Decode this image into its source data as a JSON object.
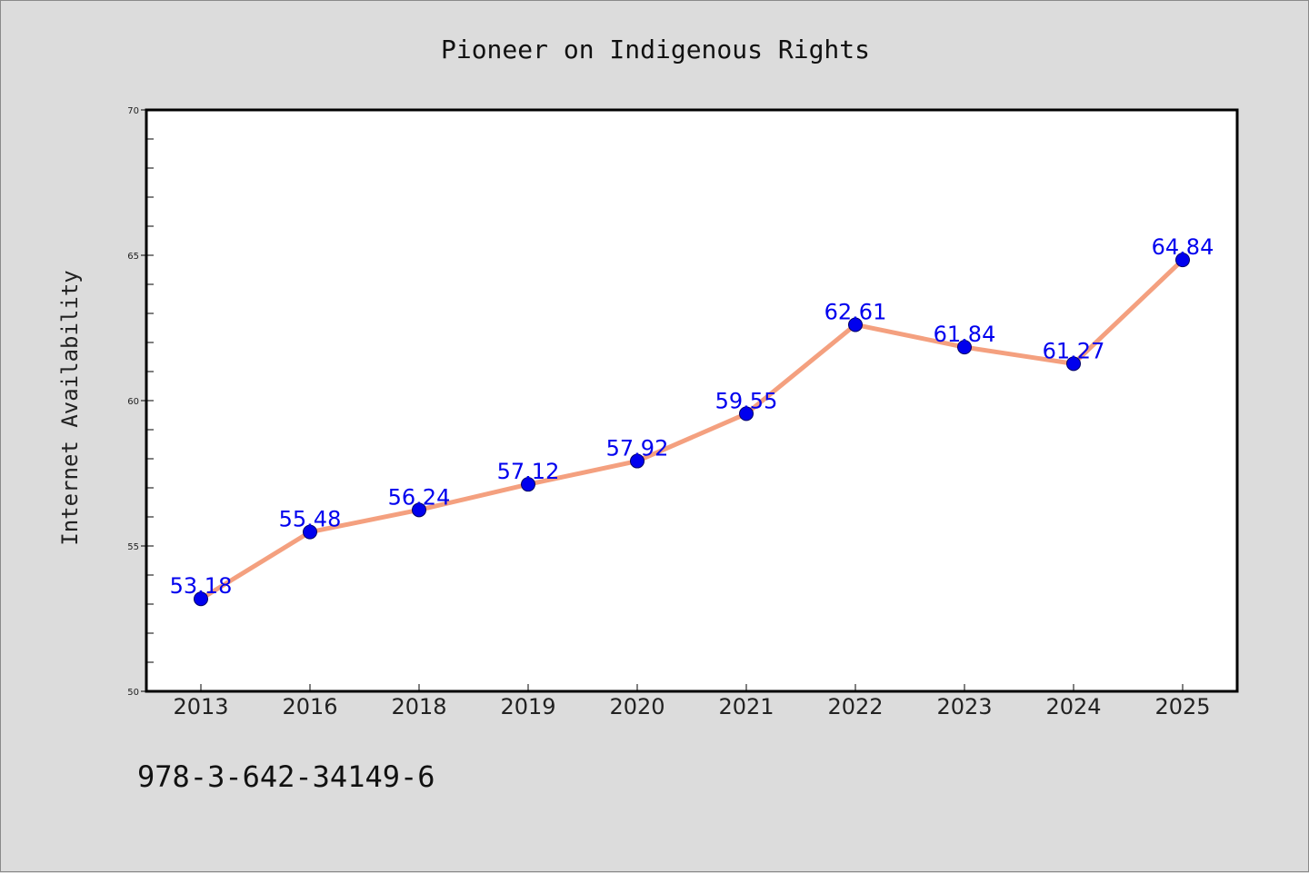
{
  "footer_text": "978-3-642-34149-6",
  "colors": {
    "background": "#dcdcdc",
    "plot_background": "#ffffff",
    "line": "#f4a07f",
    "marker": "#0000ee",
    "data_label": "#0000ee",
    "axis": "#000000"
  },
  "chart_data": {
    "type": "line",
    "title": "Pioneer on Indigenous Rights",
    "xlabel": "",
    "ylabel": "Internet Availability",
    "categories": [
      "2013",
      "2016",
      "2018",
      "2019",
      "2020",
      "2021",
      "2022",
      "2023",
      "2024",
      "2025"
    ],
    "series": [
      {
        "values": [
          53.18,
          55.48,
          56.24,
          57.12,
          57.92,
          59.55,
          62.61,
          61.84,
          61.27,
          64.84
        ]
      }
    ],
    "data_labels": [
      "53.18",
      "55.48",
      "56.24",
      "57.12",
      "57.92",
      "59.55",
      "62.61",
      "61.84",
      "61.27",
      "64.84"
    ],
    "ylim": [
      50,
      70
    ],
    "yticks": [
      50,
      55,
      60,
      65,
      70
    ],
    "ytick_labels": [
      "50",
      "55",
      "60",
      "65",
      "70"
    ],
    "y_minor_step": 1,
    "grid": false,
    "legend": "none"
  }
}
